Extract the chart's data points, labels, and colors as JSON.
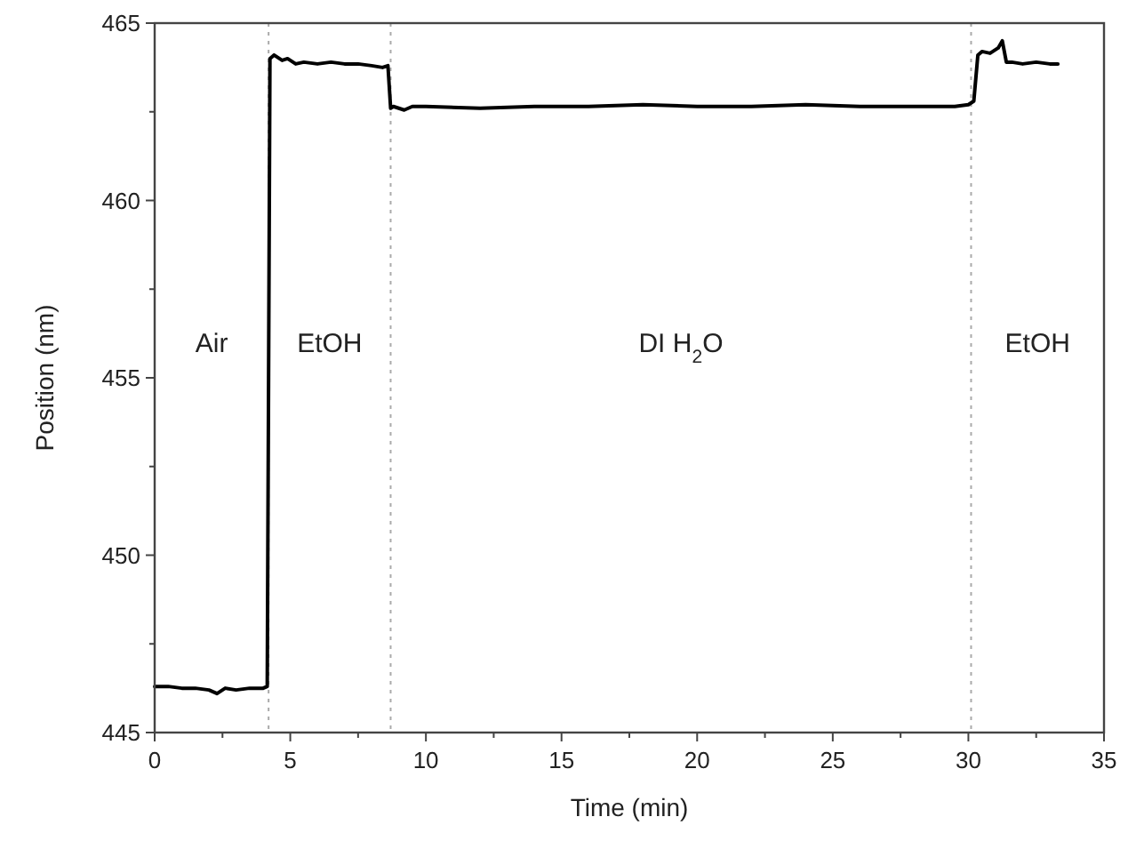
{
  "chart_data": {
    "type": "line",
    "xlabel": "Time (min)",
    "ylabel": "Position (nm)",
    "xlim": [
      0,
      35
    ],
    "ylim": [
      445,
      465
    ],
    "xticks": [
      0,
      {
        "value": 2.5,
        "label": null
      },
      5,
      {
        "value": 7.5,
        "label": null
      },
      10,
      {
        "value": 12.5,
        "label": null
      },
      15,
      {
        "value": 17.5,
        "label": null
      },
      20,
      {
        "value": 22.5,
        "label": null
      },
      25,
      {
        "value": 27.5,
        "label": null
      },
      30,
      {
        "value": 32.5,
        "label": null
      },
      35
    ],
    "yticks": [
      445,
      {
        "value": 447.5,
        "label": null
      },
      450,
      {
        "value": 452.5,
        "label": null
      },
      455,
      {
        "value": 457.5,
        "label": null
      },
      460,
      {
        "value": 462.5,
        "label": null
      },
      465
    ],
    "grid": false,
    "marker": "none",
    "line_style": "solid",
    "series": [
      {
        "color": "#000000",
        "x": [
          0,
          0.5,
          1,
          1.5,
          2,
          2.3,
          2.6,
          3,
          3.5,
          4,
          4.15,
          4.2,
          4.25,
          4.4,
          4.7,
          4.9,
          5.2,
          5.5,
          6,
          6.5,
          7,
          7.5,
          8,
          8.4,
          8.6,
          8.7,
          8.8,
          9.2,
          9.5,
          10,
          12,
          14,
          16,
          18,
          20,
          22,
          24,
          26,
          28,
          29.5,
          30,
          30.2,
          30.35,
          30.5,
          30.8,
          31.1,
          31.25,
          31.4,
          31.6,
          32,
          32.5,
          33,
          33.3
        ],
        "values": [
          446.3,
          446.3,
          446.25,
          446.25,
          446.2,
          446.1,
          446.25,
          446.2,
          446.25,
          446.25,
          446.3,
          455,
          464.0,
          464.1,
          463.95,
          464.0,
          463.85,
          463.9,
          463.85,
          463.9,
          463.85,
          463.85,
          463.8,
          463.75,
          463.8,
          462.6,
          462.65,
          462.55,
          462.65,
          462.65,
          462.6,
          462.65,
          462.65,
          462.7,
          462.65,
          462.65,
          462.7,
          462.65,
          462.65,
          462.65,
          462.7,
          462.8,
          464.1,
          464.2,
          464.15,
          464.3,
          464.5,
          463.9,
          463.9,
          463.85,
          463.9,
          463.85,
          463.85
        ]
      }
    ],
    "ref_lines": [
      {
        "axis": "x",
        "value": 4.2,
        "color": "#aaaaaa",
        "line_style": "dotted"
      },
      {
        "axis": "x",
        "value": 8.7,
        "color": "#aaaaaa",
        "line_style": "dotted"
      },
      {
        "axis": "x",
        "value": 30.1,
        "color": "#aaaaaa",
        "line_style": "dotted"
      }
    ],
    "annotations": [
      "Air",
      "EtOH",
      "DI H$_{2}$O",
      "EtOH"
    ]
  }
}
